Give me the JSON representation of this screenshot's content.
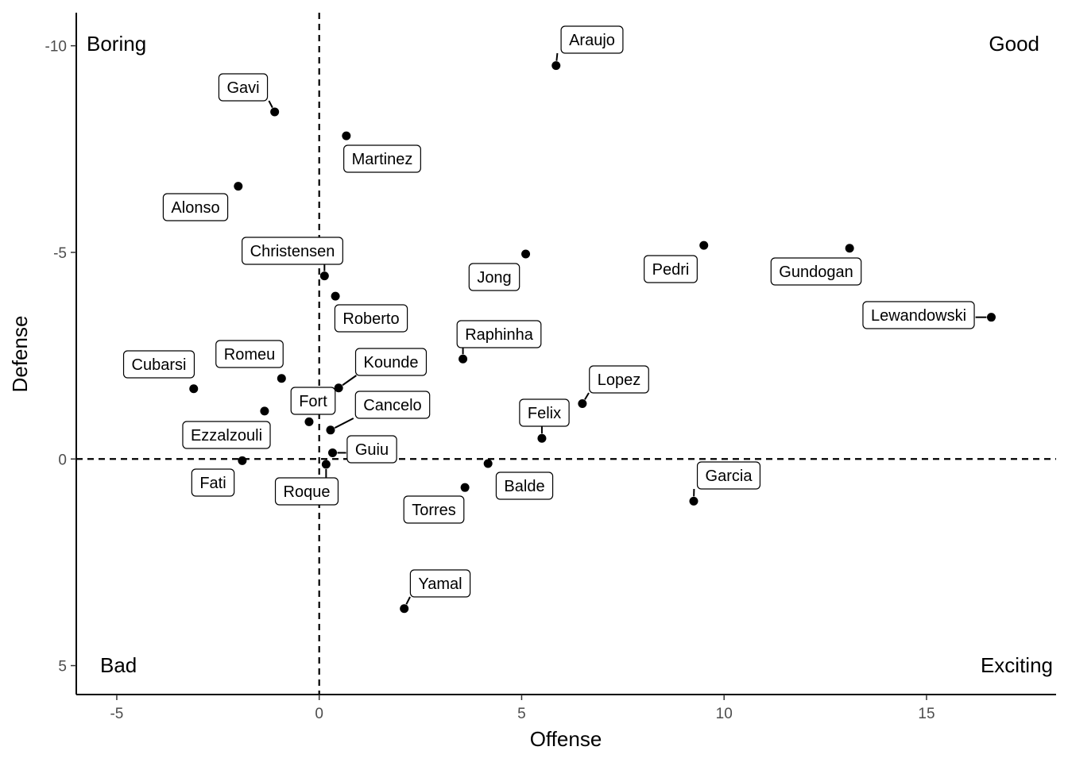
{
  "chart_data": {
    "type": "scatter",
    "xlabel": "Offense",
    "ylabel": "Defense",
    "xlim": [
      -6,
      18.2
    ],
    "ylim": [
      -10.8,
      5.7
    ],
    "y_reversed": true,
    "x_ticks": [
      -5,
      0,
      5,
      10,
      15
    ],
    "y_ticks": [
      -10,
      -5,
      0,
      5
    ],
    "reference_lines": {
      "x": 0,
      "y": 0,
      "style": "dashed"
    },
    "grid": false,
    "quadrant_labels": {
      "top_left": "Boring",
      "top_right": "Good",
      "bottom_left": "Bad",
      "bottom_right": "Exciting"
    },
    "points": [
      {
        "name": "Araujo",
        "x": 5.85,
        "y": -9.52
      },
      {
        "name": "Gavi",
        "x": -1.1,
        "y": -8.4
      },
      {
        "name": "Martinez",
        "x": 0.67,
        "y": -7.82
      },
      {
        "name": "Alonso",
        "x": -2.0,
        "y": -6.6
      },
      {
        "name": "Pedri",
        "x": 9.5,
        "y": -5.17
      },
      {
        "name": "Gundogan",
        "x": 13.1,
        "y": -5.1
      },
      {
        "name": "Jong",
        "x": 5.1,
        "y": -4.96
      },
      {
        "name": "Christensen",
        "x": 0.13,
        "y": -4.43
      },
      {
        "name": "Roberto",
        "x": 0.4,
        "y": -3.94
      },
      {
        "name": "Lewandowski",
        "x": 16.6,
        "y": -3.43
      },
      {
        "name": "Raphinha",
        "x": 3.55,
        "y": -2.42
      },
      {
        "name": "Romeu",
        "x": -0.93,
        "y": -1.95
      },
      {
        "name": "Kounde",
        "x": 0.48,
        "y": -1.72
      },
      {
        "name": "Cubarsi",
        "x": -3.1,
        "y": -1.7
      },
      {
        "name": "Lopez",
        "x": 6.5,
        "y": -1.34
      },
      {
        "name": "Ezzalzouli",
        "x": -1.35,
        "y": -1.16
      },
      {
        "name": "Fort",
        "x": -0.25,
        "y": -0.9
      },
      {
        "name": "Cancelo",
        "x": 0.28,
        "y": -0.7
      },
      {
        "name": "Felix",
        "x": 5.5,
        "y": -0.5
      },
      {
        "name": "Guiu",
        "x": 0.33,
        "y": -0.15
      },
      {
        "name": "Fati",
        "x": -1.9,
        "y": 0.04
      },
      {
        "name": "Balde",
        "x": 4.17,
        "y": 0.11
      },
      {
        "name": "Roque",
        "x": 0.17,
        "y": 0.13
      },
      {
        "name": "Torres",
        "x": 3.6,
        "y": 0.69
      },
      {
        "name": "Garcia",
        "x": 9.25,
        "y": 1.02
      },
      {
        "name": "Yamal",
        "x": 2.1,
        "y": 3.62
      }
    ]
  }
}
